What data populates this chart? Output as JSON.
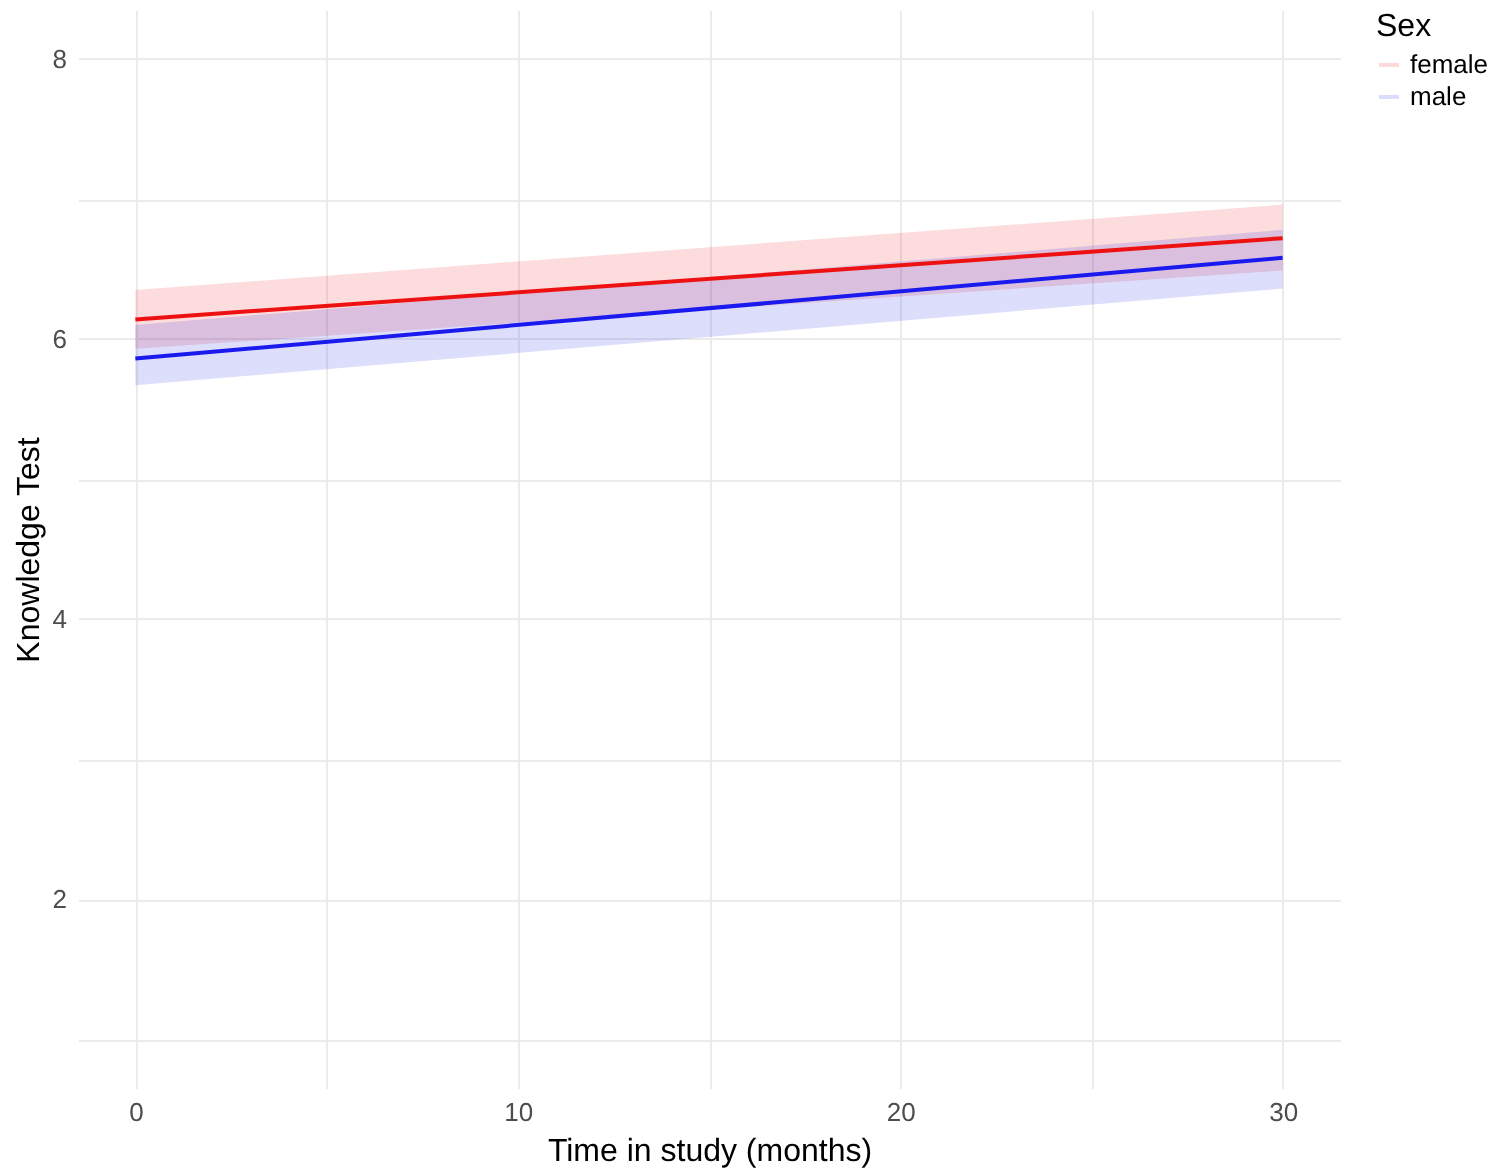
{
  "chart_data": {
    "type": "line",
    "xlabel": "Time in study (months)",
    "ylabel": "Knowledge Test",
    "legend_title": "Sex",
    "legend": "right",
    "grid": true,
    "x": [
      0,
      30
    ],
    "xlim": [
      -1.5,
      31.5
    ],
    "ylim": [
      0.65,
      8.35
    ],
    "xticks": [
      0,
      {
        "value": 5,
        "label": null
      },
      10,
      {
        "value": 15,
        "label": null
      },
      20,
      {
        "value": 25,
        "label": null
      },
      30
    ],
    "yticks": [
      {
        "value": 1,
        "label": null
      },
      2,
      {
        "value": 3,
        "label": null
      },
      4,
      {
        "value": 5,
        "label": null
      },
      6,
      {
        "value": 7,
        "label": null
      },
      8
    ],
    "series": [
      {
        "name": "female",
        "color": "#ee1111",
        "values": [
          6.14,
          6.72
        ],
        "lower": [
          5.93,
          6.49
        ],
        "upper": [
          6.35,
          6.96
        ]
      },
      {
        "name": "male",
        "color": "#1a1aee",
        "values": [
          5.86,
          6.58
        ],
        "lower": [
          5.67,
          6.36
        ],
        "upper": [
          6.1,
          6.78
        ]
      }
    ]
  }
}
